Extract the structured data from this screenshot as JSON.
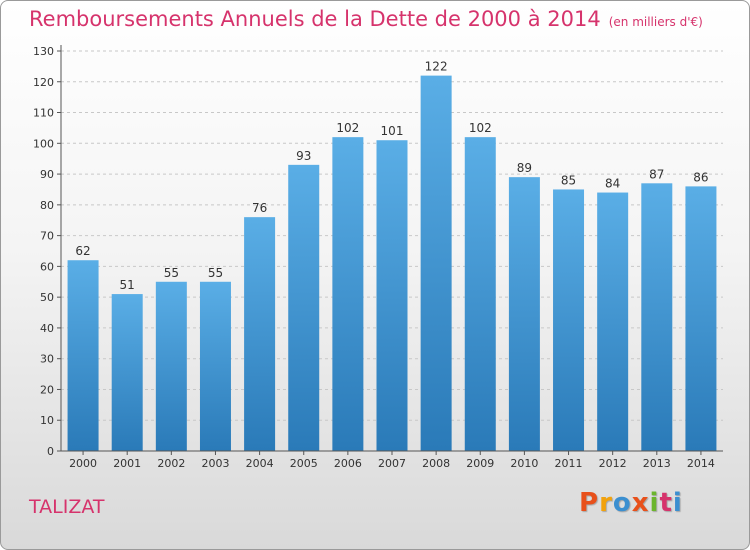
{
  "header": {
    "title": "Remboursements Annuels de la Dette de 2000 à 2014",
    "unit": "(en milliers d'€)"
  },
  "footer": {
    "place": "TALIZAT",
    "logo_text": "Proxiti"
  },
  "colors": {
    "title": "#d6336c",
    "bar_light": "#5aaee6",
    "bar_dark": "#2a7ab8",
    "grid": "#c8c8c8",
    "logo": [
      "#e8501a",
      "#f2a20c",
      "#3b8fd0",
      "#e8501a",
      "#6cb52d",
      "#d6336c",
      "#3b8fd0"
    ]
  },
  "chart_data": {
    "type": "bar",
    "categories": [
      "2000",
      "2001",
      "2002",
      "2003",
      "2004",
      "2005",
      "2006",
      "2007",
      "2008",
      "2009",
      "2010",
      "2011",
      "2012",
      "2013",
      "2014"
    ],
    "values": [
      62,
      51,
      55,
      55,
      76,
      93,
      102,
      101,
      122,
      102,
      89,
      85,
      84,
      87,
      86
    ],
    "title": "Remboursements Annuels de la Dette de 2000 à 2014",
    "ylim": [
      0,
      130
    ],
    "yticks": [
      0,
      10,
      20,
      30,
      40,
      50,
      60,
      70,
      80,
      90,
      100,
      110,
      120,
      130
    ],
    "grid": true,
    "data_labels": true
  }
}
